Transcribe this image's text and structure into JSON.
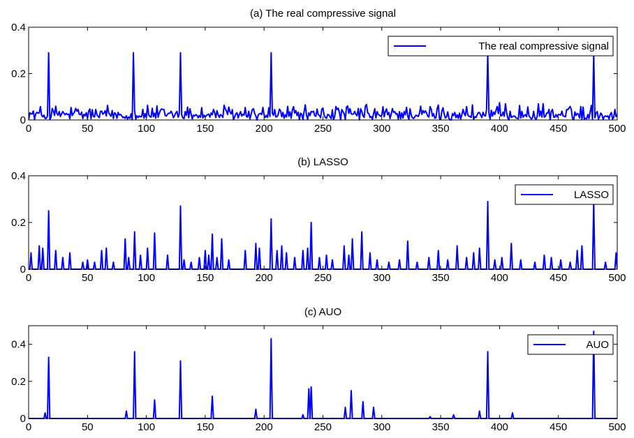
{
  "chart_data": [
    {
      "type": "line",
      "title": "(a) The real compressive signal",
      "xlabel": "",
      "ylabel": "",
      "xlim": [
        0,
        500
      ],
      "ylim": [
        0,
        0.4
      ],
      "xticks": [
        0,
        50,
        100,
        150,
        200,
        250,
        300,
        350,
        400,
        450,
        500
      ],
      "xtick_labels": [
        "0",
        "50",
        "100",
        "150",
        "200",
        "250",
        "300",
        "350",
        "400",
        "450",
        "500"
      ],
      "yticks": [
        0,
        0.2,
        0.4
      ],
      "ytick_labels": [
        "0",
        "0.2",
        "0.4"
      ],
      "grid": false,
      "legend_position": "top-right",
      "color": "#0000ff",
      "series": [
        {
          "name": "The real compressive signal",
          "spikes": [
            {
              "x": 17,
              "y": 0.29
            },
            {
              "x": 89,
              "y": 0.29
            },
            {
              "x": 129,
              "y": 0.29
            },
            {
              "x": 206,
              "y": 0.29
            },
            {
              "x": 390,
              "y": 0.29
            },
            {
              "x": 480,
              "y": 0.29
            }
          ],
          "noise_level": 0.045
        }
      ]
    },
    {
      "type": "line",
      "title": "(b) LASSO",
      "xlabel": "",
      "ylabel": "",
      "xlim": [
        0,
        500
      ],
      "ylim": [
        0,
        0.4
      ],
      "xticks": [
        0,
        50,
        100,
        150,
        200,
        250,
        300,
        350,
        400,
        450,
        500
      ],
      "xtick_labels": [
        "0",
        "50",
        "100",
        "150",
        "200",
        "250",
        "300",
        "350",
        "400",
        "450",
        "500"
      ],
      "yticks": [
        0,
        0.2,
        0.4
      ],
      "ytick_labels": [
        "0",
        "0.2",
        "0.4"
      ],
      "grid": false,
      "legend_position": "top-right",
      "color": "#0000ff",
      "series": [
        {
          "name": "LASSO",
          "spikes": [
            {
              "x": 2,
              "y": 0.07
            },
            {
              "x": 9,
              "y": 0.1
            },
            {
              "x": 12,
              "y": 0.09
            },
            {
              "x": 17,
              "y": 0.25
            },
            {
              "x": 23,
              "y": 0.08
            },
            {
              "x": 29,
              "y": 0.05
            },
            {
              "x": 35,
              "y": 0.07
            },
            {
              "x": 46,
              "y": 0.03
            },
            {
              "x": 50,
              "y": 0.04
            },
            {
              "x": 56,
              "y": 0.03
            },
            {
              "x": 62,
              "y": 0.08
            },
            {
              "x": 66,
              "y": 0.09
            },
            {
              "x": 72,
              "y": 0.03
            },
            {
              "x": 82,
              "y": 0.13
            },
            {
              "x": 85,
              "y": 0.05
            },
            {
              "x": 90,
              "y": 0.16
            },
            {
              "x": 95,
              "y": 0.06
            },
            {
              "x": 101,
              "y": 0.09
            },
            {
              "x": 107,
              "y": 0.155
            },
            {
              "x": 118,
              "y": 0.06
            },
            {
              "x": 129,
              "y": 0.27
            },
            {
              "x": 132,
              "y": 0.04
            },
            {
              "x": 138,
              "y": 0.03
            },
            {
              "x": 145,
              "y": 0.05
            },
            {
              "x": 150,
              "y": 0.08
            },
            {
              "x": 153,
              "y": 0.06
            },
            {
              "x": 156,
              "y": 0.15
            },
            {
              "x": 160,
              "y": 0.05
            },
            {
              "x": 164,
              "y": 0.13
            },
            {
              "x": 170,
              "y": 0.04
            },
            {
              "x": 184,
              "y": 0.08
            },
            {
              "x": 193,
              "y": 0.11
            },
            {
              "x": 196,
              "y": 0.09
            },
            {
              "x": 206,
              "y": 0.215
            },
            {
              "x": 211,
              "y": 0.08
            },
            {
              "x": 215,
              "y": 0.1
            },
            {
              "x": 219,
              "y": 0.07
            },
            {
              "x": 226,
              "y": 0.05
            },
            {
              "x": 233,
              "y": 0.08
            },
            {
              "x": 237,
              "y": 0.09
            },
            {
              "x": 240,
              "y": 0.2
            },
            {
              "x": 247,
              "y": 0.05
            },
            {
              "x": 253,
              "y": 0.06
            },
            {
              "x": 258,
              "y": 0.04
            },
            {
              "x": 268,
              "y": 0.1
            },
            {
              "x": 272,
              "y": 0.06
            },
            {
              "x": 275,
              "y": 0.13
            },
            {
              "x": 283,
              "y": 0.16
            },
            {
              "x": 290,
              "y": 0.07
            },
            {
              "x": 296,
              "y": 0.04
            },
            {
              "x": 306,
              "y": 0.03
            },
            {
              "x": 315,
              "y": 0.04
            },
            {
              "x": 322,
              "y": 0.12
            },
            {
              "x": 330,
              "y": 0.03
            },
            {
              "x": 340,
              "y": 0.05
            },
            {
              "x": 348,
              "y": 0.08
            },
            {
              "x": 356,
              "y": 0.04
            },
            {
              "x": 364,
              "y": 0.1
            },
            {
              "x": 372,
              "y": 0.05
            },
            {
              "x": 378,
              "y": 0.07
            },
            {
              "x": 383,
              "y": 0.09
            },
            {
              "x": 390,
              "y": 0.29
            },
            {
              "x": 396,
              "y": 0.04
            },
            {
              "x": 402,
              "y": 0.05
            },
            {
              "x": 410,
              "y": 0.11
            },
            {
              "x": 418,
              "y": 0.04
            },
            {
              "x": 430,
              "y": 0.03
            },
            {
              "x": 438,
              "y": 0.06
            },
            {
              "x": 444,
              "y": 0.05
            },
            {
              "x": 452,
              "y": 0.04
            },
            {
              "x": 460,
              "y": 0.03
            },
            {
              "x": 466,
              "y": 0.08
            },
            {
              "x": 470,
              "y": 0.1
            },
            {
              "x": 480,
              "y": 0.29
            },
            {
              "x": 490,
              "y": 0.03
            },
            {
              "x": 499,
              "y": 0.07
            }
          ]
        }
      ]
    },
    {
      "type": "line",
      "title": "(c) AUO",
      "xlabel": "",
      "ylabel": "",
      "xlim": [
        0,
        500
      ],
      "ylim": [
        0,
        0.5
      ],
      "xticks": [
        0,
        50,
        100,
        150,
        200,
        250,
        300,
        350,
        400,
        450,
        500
      ],
      "xtick_labels": [
        "0",
        "50",
        "100",
        "150",
        "200",
        "250",
        "300",
        "350",
        "400",
        "450",
        "500"
      ],
      "yticks": [
        0,
        0.2,
        0.4
      ],
      "ytick_labels": [
        "0",
        "0.2",
        "0.4"
      ],
      "grid": false,
      "legend_position": "top-right",
      "color": "#0000ff",
      "series": [
        {
          "name": "AUO",
          "spikes": [
            {
              "x": 14,
              "y": 0.03
            },
            {
              "x": 17,
              "y": 0.33
            },
            {
              "x": 83,
              "y": 0.04
            },
            {
              "x": 90,
              "y": 0.36
            },
            {
              "x": 107,
              "y": 0.1
            },
            {
              "x": 129,
              "y": 0.31
            },
            {
              "x": 156,
              "y": 0.12
            },
            {
              "x": 193,
              "y": 0.05
            },
            {
              "x": 206,
              "y": 0.43
            },
            {
              "x": 233,
              "y": 0.02
            },
            {
              "x": 238,
              "y": 0.16
            },
            {
              "x": 240,
              "y": 0.17
            },
            {
              "x": 269,
              "y": 0.06
            },
            {
              "x": 274,
              "y": 0.15
            },
            {
              "x": 284,
              "y": 0.09
            },
            {
              "x": 293,
              "y": 0.06
            },
            {
              "x": 341,
              "y": 0.01
            },
            {
              "x": 361,
              "y": 0.02
            },
            {
              "x": 383,
              "y": 0.04
            },
            {
              "x": 390,
              "y": 0.36
            },
            {
              "x": 411,
              "y": 0.03
            },
            {
              "x": 480,
              "y": 0.47
            }
          ]
        }
      ]
    }
  ]
}
